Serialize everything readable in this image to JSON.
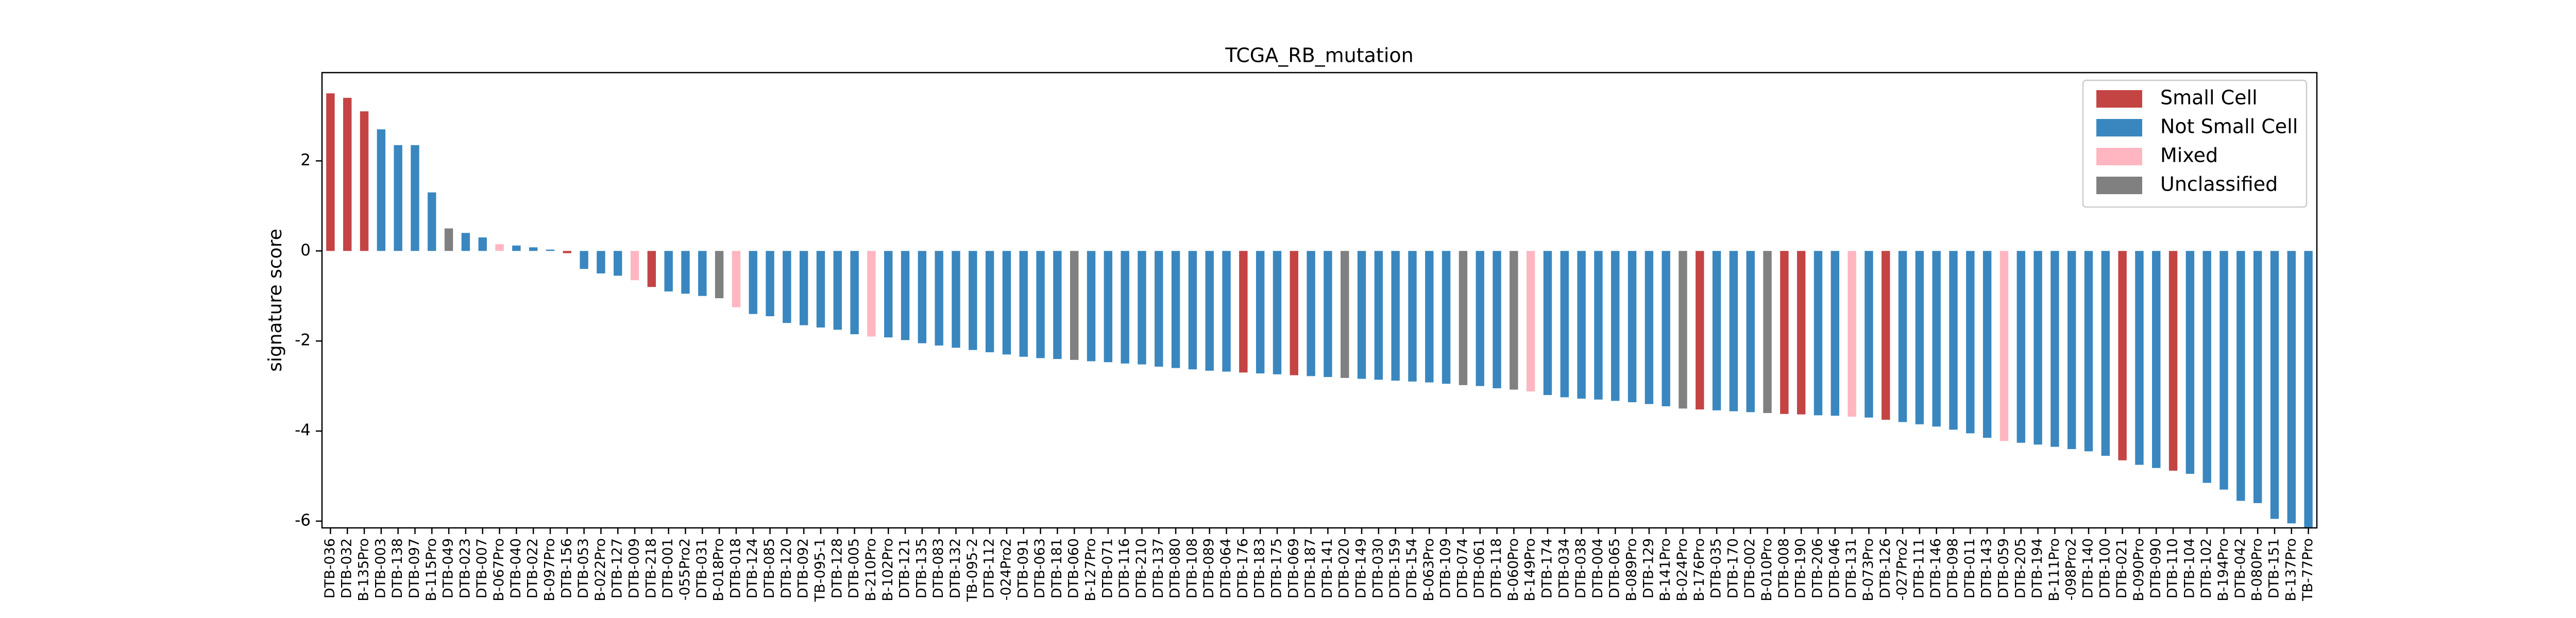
{
  "chart_data": {
    "type": "bar",
    "title": "TCGA_RB_mutation",
    "y_label": "signature score",
    "categories": [
      "DTB-036",
      "DTB-032",
      "B-135Pro",
      "DTB-003",
      "DTB-138",
      "DTB-097",
      "B-115Pro",
      "DTB-049",
      "DTB-023",
      "DTB-007",
      "B-067Pro",
      "DTB-040",
      "DTB-022",
      "B-097Pro",
      "DTB-156",
      "DTB-053",
      "B-022Pro",
      "DTB-127",
      "DTB-009",
      "DTB-218",
      "DTB-001",
      "-055Pro2",
      "DTB-031",
      "B-018Pro",
      "DTB-018",
      "DTB-124",
      "DTB-085",
      "DTB-120",
      "DTB-092",
      "TB-095-1",
      "DTB-128",
      "DTB-005",
      "B-210Pro",
      "B-102Pro",
      "DTB-121",
      "DTB-135",
      "DTB-083",
      "DTB-132",
      "TB-095-2",
      "DTB-112",
      "-024Pro2",
      "DTB-091",
      "DTB-063",
      "DTB-181",
      "DTB-060",
      "B-127Pro",
      "DTB-071",
      "DTB-116",
      "DTB-210",
      "DTB-137",
      "DTB-080",
      "DTB-108",
      "DTB-089",
      "DTB-064",
      "DTB-176",
      "DTB-183",
      "DTB-175",
      "DTB-069",
      "DTB-187",
      "DTB-141",
      "DTB-020",
      "DTB-149",
      "DTB-030",
      "DTB-159",
      "DTB-154",
      "B-063Pro",
      "DTB-109",
      "DTB-074",
      "DTB-061",
      "DTB-118",
      "B-060Pro",
      "B-149Pro",
      "DTB-174",
      "DTB-034",
      "DTB-038",
      "DTB-004",
      "DTB-065",
      "B-089Pro",
      "DTB-129",
      "B-141Pro",
      "B-024Pro",
      "B-176Pro",
      "DTB-035",
      "DTB-170",
      "DTB-002",
      "B-010Pro",
      "DTB-008",
      "DTB-190",
      "DTB-206",
      "DTB-046",
      "DTB-131",
      "B-073Pro",
      "DTB-126",
      "-027Pro2",
      "DTB-111",
      "DTB-146",
      "DTB-098",
      "DTB-011",
      "DTB-143",
      "DTB-059",
      "DTB-205",
      "DTB-194",
      "B-111Pro",
      "-098Pro2",
      "DTB-140",
      "DTB-100",
      "DTB-021",
      "B-090Pro",
      "DTB-090",
      "DTB-110",
      "DTB-104",
      "DTB-102",
      "B-194Pro",
      "DTB-042",
      "B-080Pro",
      "DTB-151",
      "B-137Pro",
      "TB-77Pro"
    ],
    "values": [
      3.5,
      3.4,
      3.1,
      2.7,
      2.35,
      2.35,
      1.3,
      0.5,
      0.4,
      0.3,
      0.15,
      0.12,
      0.08,
      0.03,
      -0.05,
      -0.4,
      -0.5,
      -0.55,
      -0.65,
      -0.8,
      -0.9,
      -0.95,
      -1.0,
      -1.05,
      -1.25,
      -1.4,
      -1.45,
      -1.6,
      -1.65,
      -1.7,
      -1.75,
      -1.85,
      -1.9,
      -1.92,
      -1.98,
      -2.05,
      -2.1,
      -2.15,
      -2.2,
      -2.25,
      -2.3,
      -2.35,
      -2.38,
      -2.4,
      -2.42,
      -2.45,
      -2.47,
      -2.5,
      -2.52,
      -2.57,
      -2.6,
      -2.63,
      -2.66,
      -2.68,
      -2.7,
      -2.72,
      -2.74,
      -2.76,
      -2.78,
      -2.8,
      -2.82,
      -2.84,
      -2.86,
      -2.88,
      -2.9,
      -2.92,
      -2.95,
      -2.98,
      -3.0,
      -3.05,
      -3.08,
      -3.12,
      -3.2,
      -3.25,
      -3.28,
      -3.3,
      -3.33,
      -3.36,
      -3.4,
      -3.45,
      -3.5,
      -3.52,
      -3.54,
      -3.56,
      -3.58,
      -3.6,
      -3.62,
      -3.63,
      -3.65,
      -3.66,
      -3.68,
      -3.7,
      -3.75,
      -3.8,
      -3.85,
      -3.9,
      -3.97,
      -4.05,
      -4.15,
      -4.22,
      -4.26,
      -4.3,
      -4.35,
      -4.4,
      -4.45,
      -4.55,
      -4.65,
      -4.75,
      -4.82,
      -4.88,
      -4.95,
      -5.15,
      -5.3,
      -5.55,
      -5.6,
      -5.95,
      -6.05,
      -6.15
    ],
    "colors": [
      "#c44444",
      "#c44444",
      "#c44444",
      "#3a87bf",
      "#3a87bf",
      "#3a87bf",
      "#3a87bf",
      "#808080",
      "#3a87bf",
      "#3a87bf",
      "#ffb6c1",
      "#3a87bf",
      "#3a87bf",
      "#3a87bf",
      "#c44444",
      "#3a87bf",
      "#3a87bf",
      "#3a87bf",
      "#ffb6c1",
      "#c44444",
      "#3a87bf",
      "#3a87bf",
      "#3a87bf",
      "#808080",
      "#ffb6c1",
      "#3a87bf",
      "#3a87bf",
      "#3a87bf",
      "#3a87bf",
      "#3a87bf",
      "#3a87bf",
      "#3a87bf",
      "#ffb6c1",
      "#3a87bf",
      "#3a87bf",
      "#3a87bf",
      "#3a87bf",
      "#3a87bf",
      "#3a87bf",
      "#3a87bf",
      "#3a87bf",
      "#3a87bf",
      "#3a87bf",
      "#3a87bf",
      "#808080",
      "#3a87bf",
      "#3a87bf",
      "#3a87bf",
      "#3a87bf",
      "#3a87bf",
      "#3a87bf",
      "#3a87bf",
      "#3a87bf",
      "#3a87bf",
      "#c44444",
      "#3a87bf",
      "#3a87bf",
      "#c44444",
      "#3a87bf",
      "#3a87bf",
      "#808080",
      "#3a87bf",
      "#3a87bf",
      "#3a87bf",
      "#3a87bf",
      "#3a87bf",
      "#3a87bf",
      "#808080",
      "#3a87bf",
      "#3a87bf",
      "#808080",
      "#ffb6c1",
      "#3a87bf",
      "#3a87bf",
      "#3a87bf",
      "#3a87bf",
      "#3a87bf",
      "#3a87bf",
      "#3a87bf",
      "#3a87bf",
      "#808080",
      "#c44444",
      "#3a87bf",
      "#3a87bf",
      "#3a87bf",
      "#808080",
      "#c44444",
      "#c44444",
      "#3a87bf",
      "#3a87bf",
      "#ffb6c1",
      "#3a87bf",
      "#c44444",
      "#3a87bf",
      "#3a87bf",
      "#3a87bf",
      "#3a87bf",
      "#3a87bf",
      "#3a87bf",
      "#ffb6c1",
      "#3a87bf",
      "#3a87bf",
      "#3a87bf",
      "#3a87bf",
      "#3a87bf",
      "#3a87bf",
      "#c44444",
      "#3a87bf",
      "#3a87bf",
      "#c44444",
      "#3a87bf",
      "#3a87bf",
      "#3a87bf",
      "#3a87bf",
      "#3a87bf",
      "#3a87bf",
      "#3a87bf",
      "#3a87bf"
    ],
    "legend": [
      {
        "name": "Small Cell",
        "color": "#c44444"
      },
      {
        "name": "Not Small Cell",
        "color": "#3a87bf"
      },
      {
        "name": "Mixed",
        "color": "#ffb6c1"
      },
      {
        "name": "Unclassified",
        "color": "#808080"
      }
    ],
    "legend_position": "upper right",
    "ylim": [
      -6.15,
      3.96
    ],
    "yticks": [
      -6,
      -4,
      -2,
      0,
      2
    ],
    "grid": false
  }
}
